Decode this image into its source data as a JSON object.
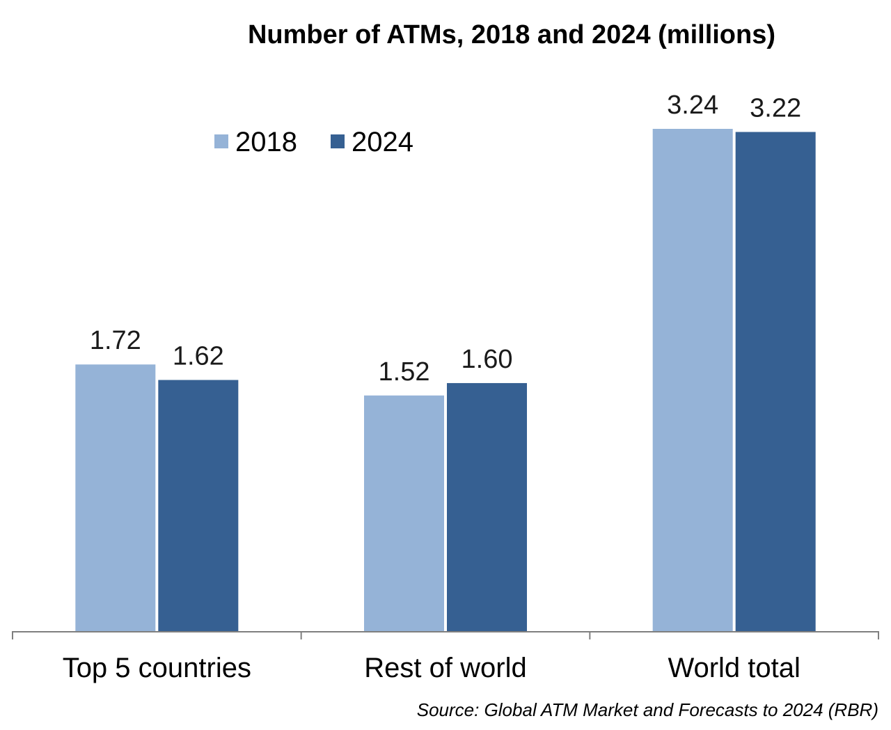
{
  "chart_data": {
    "type": "bar",
    "title": "Number of ATMs, 2018 and 2024 (millions)",
    "categories": [
      "Top 5 countries",
      "Rest of world",
      "World total"
    ],
    "series": [
      {
        "name": "2018",
        "values": [
          1.72,
          1.52,
          3.24
        ],
        "labels": [
          "1.72",
          "1.52",
          "3.24"
        ],
        "color": "#95b3d7"
      },
      {
        "name": "2024",
        "values": [
          1.62,
          1.6,
          3.22
        ],
        "labels": [
          "1.62",
          "1.60",
          "3.22"
        ],
        "color": "#366092"
      }
    ],
    "ylim": [
      0,
      3.24
    ],
    "grid": false,
    "legend": "top-left",
    "source": "Source: Global ATM Market and Forecasts to 2024 (RBR)"
  }
}
